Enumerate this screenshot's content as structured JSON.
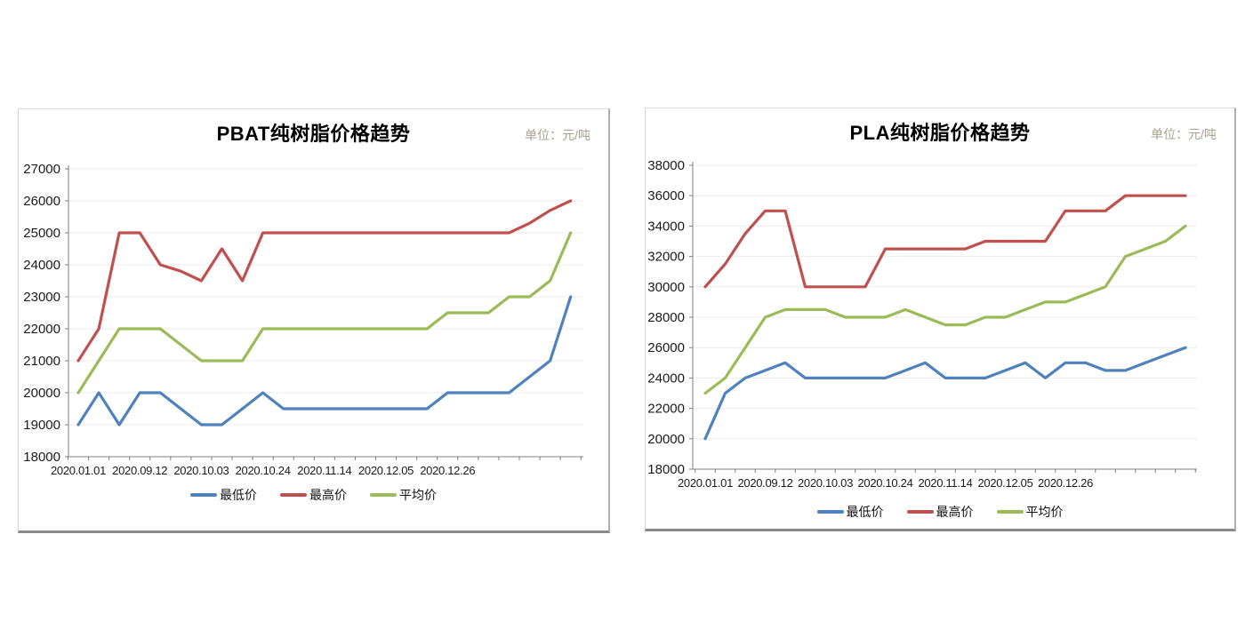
{
  "colors": {
    "min": "#4F81BD",
    "max": "#C0504D",
    "avg": "#9BBB59",
    "axis": "#7f7f7f",
    "grid": "#ececec",
    "tick_text": "#1a1a1a",
    "unit_text": "#ac9e91",
    "title_text": "#000000"
  },
  "chart_data": [
    {
      "type": "line",
      "title": "PBAT纯树脂价格趋势",
      "unit_label": "单位：元/吨",
      "xlabel": "",
      "ylabel": "",
      "ylim": [
        18000,
        27000
      ],
      "ytick_step": 1000,
      "n_points": 25,
      "label_every": 3,
      "grid": true,
      "legend_position": "bottom",
      "x_tick_labels": [
        "2020.01.01",
        "2020.09.12",
        "2020.10.03",
        "2020.10.24",
        "2020.11.14",
        "2020.12.05",
        "2020.12.26"
      ],
      "series": [
        {
          "name": "最低价",
          "color_key": "min",
          "values": [
            19000,
            20000,
            19000,
            20000,
            20000,
            19500,
            19000,
            19000,
            19500,
            20000,
            19500,
            19500,
            19500,
            19500,
            19500,
            19500,
            19500,
            19500,
            20000,
            20000,
            20000,
            20000,
            20500,
            21000,
            23000
          ]
        },
        {
          "name": "最高价",
          "color_key": "max",
          "values": [
            21000,
            22000,
            25000,
            25000,
            24000,
            23800,
            23500,
            24500,
            23500,
            25000,
            25000,
            25000,
            25000,
            25000,
            25000,
            25000,
            25000,
            25000,
            25000,
            25000,
            25000,
            25000,
            25300,
            25700,
            26000
          ]
        },
        {
          "name": "平均价",
          "color_key": "avg",
          "values": [
            20000,
            21000,
            22000,
            22000,
            22000,
            21500,
            21000,
            21000,
            21000,
            22000,
            22000,
            22000,
            22000,
            22000,
            22000,
            22000,
            22000,
            22000,
            22500,
            22500,
            22500,
            23000,
            23000,
            23500,
            25000
          ]
        }
      ]
    },
    {
      "type": "line",
      "title": "PLA纯树脂价格趋势",
      "unit_label": "单位：元/吨",
      "xlabel": "",
      "ylabel": "",
      "ylim": [
        18000,
        38000
      ],
      "ytick_step": 2000,
      "n_points": 25,
      "label_every": 3,
      "grid": true,
      "legend_position": "bottom",
      "x_tick_labels": [
        "2020.01.01",
        "2020.09.12",
        "2020.10.03",
        "2020.10.24",
        "2020.11.14",
        "2020.12.05",
        "2020.12.26"
      ],
      "series": [
        {
          "name": "最低价",
          "color_key": "min",
          "values": [
            20000,
            23000,
            24000,
            24500,
            25000,
            24000,
            24000,
            24000,
            24000,
            24000,
            24500,
            25000,
            24000,
            24000,
            24000,
            24500,
            25000,
            24000,
            25000,
            25000,
            24500,
            24500,
            25000,
            25500,
            26000
          ]
        },
        {
          "name": "最高价",
          "color_key": "max",
          "values": [
            30000,
            31500,
            33500,
            35000,
            35000,
            30000,
            30000,
            30000,
            30000,
            32500,
            32500,
            32500,
            32500,
            32500,
            33000,
            33000,
            33000,
            33000,
            35000,
            35000,
            35000,
            36000,
            36000,
            36000,
            36000
          ]
        },
        {
          "name": "平均价",
          "color_key": "avg",
          "values": [
            23000,
            24000,
            26000,
            28000,
            28500,
            28500,
            28500,
            28000,
            28000,
            28000,
            28500,
            28000,
            27500,
            27500,
            28000,
            28000,
            28500,
            29000,
            29000,
            29500,
            30000,
            32000,
            32500,
            33000,
            34000
          ]
        }
      ]
    }
  ]
}
